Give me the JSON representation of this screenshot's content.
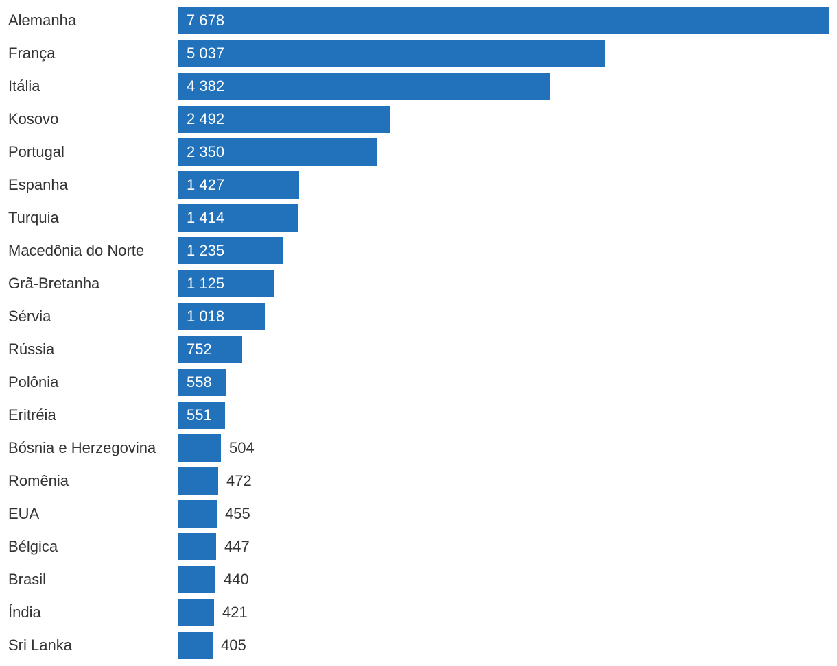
{
  "chart_data": {
    "type": "bar",
    "orientation": "horizontal",
    "title": "",
    "xlabel": "",
    "ylabel": "",
    "xlim": [
      0,
      7678
    ],
    "grid": false,
    "bar_color": "#2171bb",
    "categories": [
      "Alemanha",
      "França",
      "Itália",
      "Kosovo",
      "Portugal",
      "Espanha",
      "Turquia",
      "Macedônia do Norte",
      "Grã-Bretanha",
      "Sérvia",
      "Rússia",
      "Polônia",
      "Eritréia",
      "Bósnia e Herzegovina",
      "Romênia",
      "EUA",
      "Bélgica",
      "Brasil",
      "Índia",
      "Sri Lanka"
    ],
    "values": [
      7678,
      5037,
      4382,
      2492,
      2350,
      1427,
      1414,
      1235,
      1125,
      1018,
      752,
      558,
      551,
      504,
      472,
      455,
      447,
      440,
      421,
      405
    ],
    "value_labels": [
      "7 678",
      "5 037",
      "4 382",
      "2 492",
      "2 350",
      "1 427",
      "1 414",
      "1 235",
      "1 125",
      "1 018",
      "752",
      "558",
      "551",
      "504",
      "472",
      "455",
      "447",
      "440",
      "421",
      "405"
    ]
  }
}
